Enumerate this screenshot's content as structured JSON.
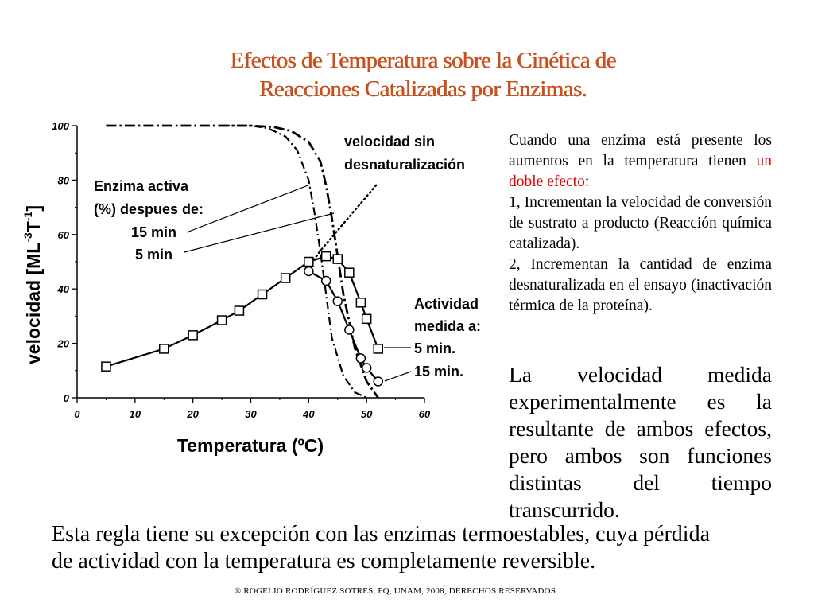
{
  "slide": {
    "title_line1": "Efectos de Temperatura sobre la Cinética de",
    "title_line2": "Reacciones Catalizadas por Enzimas.",
    "para1_a": "Cuando una enzima está presente los aumentos en la temperatura tienen ",
    "para1_red": "un doble efecto",
    "para1_b": ":",
    "para1_item1": "1, Incrementan la velocidad de conversión de sustrato a producto (Reacción química catalizada).",
    "para1_item2": "2, Incrementan la cantidad de enzima desnaturalizada en el ensayo (inactivación térmica de la proteína).",
    "para2": "La velocidad medida experimentalmente es la resultante de ambos efectos, pero ambos son funciones distintas del tiempo transcurrido.",
    "bottom_line1": "Esta regla tiene su excepción con las enzimas termoestables, cuya pérdida",
    "bottom_line2": "de actividad con la temperatura es completamente reversible.",
    "footer": "® ROGELIO RODRÍGUEZ SOTRES, FQ, UNAM, 2008, DERECHOS RESERVADOS",
    "red_color": "#e00000",
    "title_color": "#c8501e"
  },
  "chart_data": {
    "type": "line",
    "xlabel": "Temperatura (ºC)",
    "ylabel_main": "velocidad [ML",
    "ylabel_sup1": "-3",
    "ylabel_T": "T",
    "ylabel_sup2": "-1",
    "ylabel_close": "]",
    "xlim": [
      0,
      60
    ],
    "ylim": [
      0,
      100
    ],
    "xticks": [
      "0",
      "10",
      "20",
      "30",
      "40",
      "50",
      "60"
    ],
    "yticks": [
      "0",
      "20",
      "40",
      "60",
      "80",
      "100"
    ],
    "series": [
      {
        "style": "square",
        "x": [
          5,
          15,
          20,
          25,
          28,
          32,
          36,
          40,
          43,
          45,
          47,
          49,
          50,
          52
        ],
        "y": [
          11.5,
          18,
          23,
          28.5,
          32,
          38,
          44,
          50,
          52,
          51,
          46,
          35,
          29,
          18
        ]
      },
      {
        "style": "circle",
        "x": [
          40,
          43,
          45,
          47,
          49,
          50,
          52
        ],
        "y": [
          46.5,
          43,
          35.5,
          25,
          14.5,
          11,
          6
        ]
      },
      {
        "style": "dotted",
        "x": [
          40,
          42,
          44,
          46,
          48,
          50,
          52
        ],
        "y": [
          48,
          54,
          59,
          64,
          69,
          74,
          79
        ]
      },
      {
        "style": "dashdot_5min",
        "x": [
          5,
          25,
          30,
          34,
          37,
          40,
          42,
          43,
          44,
          45,
          46,
          48,
          50,
          51,
          52
        ],
        "y": [
          100,
          100,
          100,
          99.5,
          98,
          94,
          87,
          78,
          66,
          52,
          38,
          18,
          6,
          3,
          0
        ]
      },
      {
        "style": "dashdot_15min",
        "x": [
          25,
          30,
          33,
          36,
          38,
          40,
          41,
          42,
          43,
          44,
          46,
          48,
          50
        ],
        "y": [
          100,
          100,
          99,
          96,
          91,
          80,
          68,
          54,
          38,
          22,
          8,
          2,
          0
        ]
      }
    ],
    "annotations": {
      "label_undenatured": [
        "velocidad sin",
        "desnaturalización"
      ],
      "label_active_enzyme": [
        "Enzima activa",
        "(%) despues de:",
        "15 min",
        "5 min"
      ],
      "label_activity": [
        "Actividad",
        "medida a:",
        "5 min.",
        "15 min."
      ]
    }
  }
}
